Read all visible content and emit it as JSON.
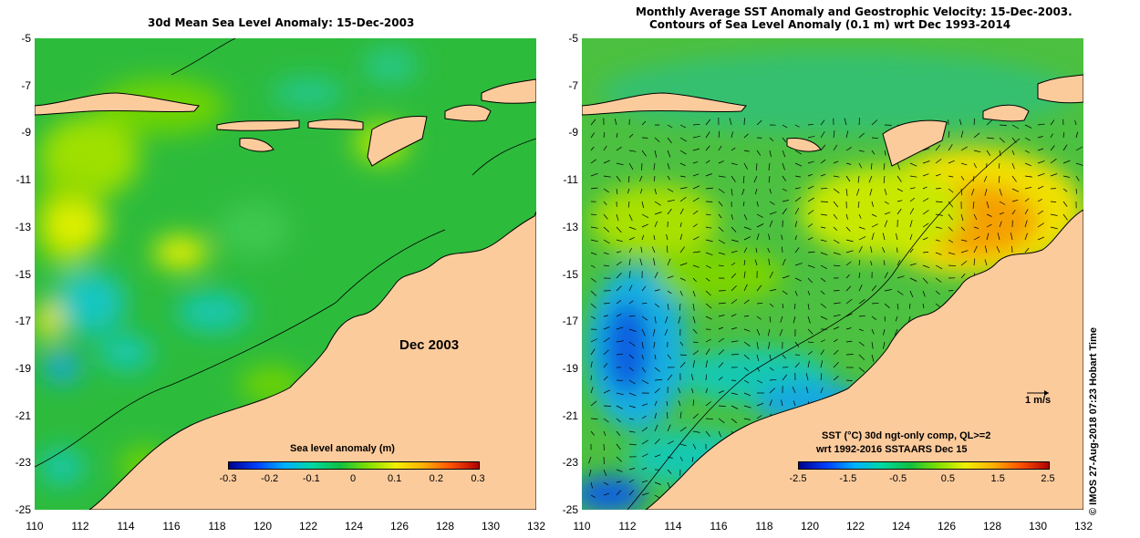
{
  "left_panel": {
    "title": "30d Mean Sea Level Anomaly: 15-Dec-2003",
    "stamp": "Dec 2003",
    "legend": {
      "title": "Sea level anomaly (m)",
      "ticks": [
        "-0.3",
        "-0.2",
        "-0.1",
        "0",
        "0.1",
        "0.2",
        "0.3"
      ],
      "colors": [
        "#00008b",
        "#0040ff",
        "#00b0ff",
        "#00d8a0",
        "#10c040",
        "#80e000",
        "#f0f000",
        "#ffb000",
        "#ff5000",
        "#b00000"
      ]
    }
  },
  "right_panel": {
    "title_line1": "Monthly Average SST Anomaly  and Geostrophic Velocity: 15-Dec-2003.",
    "title_line2": "Contours of Sea Level Anomaly (0.1 m) wrt Dec 1993-2014",
    "legend": {
      "title_line1": "SST (°C) 30d ngt-only comp, QL>=2",
      "title_line2": "wrt 1992-2016 SSTAARS Dec 15",
      "ticks": [
        "-2.5",
        "-1.5",
        "-0.5",
        "0.5",
        "1.5",
        "2.5"
      ],
      "colors": [
        "#00008b",
        "#0040ff",
        "#00b0ff",
        "#00d8a0",
        "#10c040",
        "#80e000",
        "#f0f000",
        "#ffb000",
        "#ff5000",
        "#b00000"
      ]
    },
    "vector_scale_label": "1 m/s"
  },
  "axes": {
    "latitude_ticks": [
      "-5",
      "-7",
      "-9",
      "-11",
      "-13",
      "-15",
      "-17",
      "-19",
      "-21",
      "-23",
      "-25"
    ],
    "longitude_ticks": [
      "110",
      "112",
      "114",
      "116",
      "118",
      "120",
      "122",
      "124",
      "126",
      "128",
      "130",
      "132"
    ]
  },
  "credit": "©  IMOS 27-Aug-2018 07:23 Hobart Time",
  "colors": {
    "land": "#fccb9c",
    "ocean_left": "#2dbb3c",
    "ocean_right": "#4cc040"
  }
}
